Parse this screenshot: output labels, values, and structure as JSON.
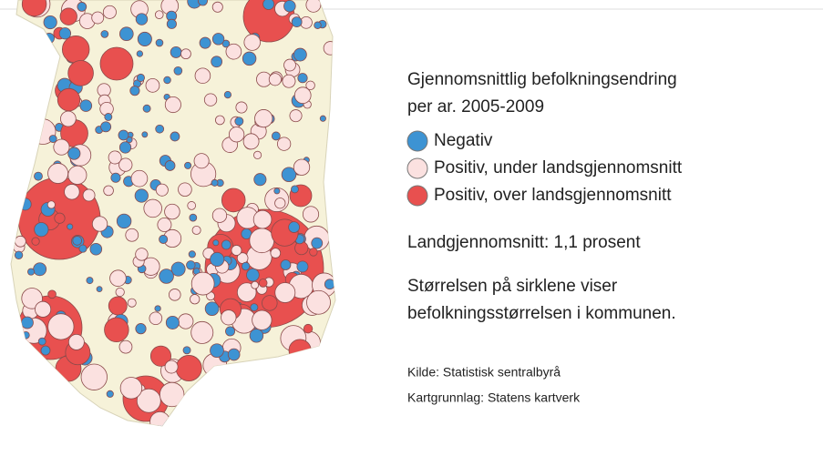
{
  "legend": {
    "title": [
      "Gjennomsnittlig befolkningsendring",
      "per ar. 2005-2009"
    ],
    "items": [
      {
        "label": "Negativ",
        "color": "#3d93d3"
      },
      {
        "label": "Positiv, under landsgjennomsnitt",
        "color": "#fbe1e0"
      },
      {
        "label": "Positiv, over landsgjennomsnitt",
        "color": "#e8504f"
      }
    ]
  },
  "notes": [
    "Landgjennomsnitt: 1,1 prosent",
    "Størrelsen på sirklene viser",
    "befolkningsstørrelsen i kommunen."
  ],
  "source": [
    "Kilde: Statistisk sentralbyrå",
    "Kartgrunnlag: Statens kartverk"
  ]
}
